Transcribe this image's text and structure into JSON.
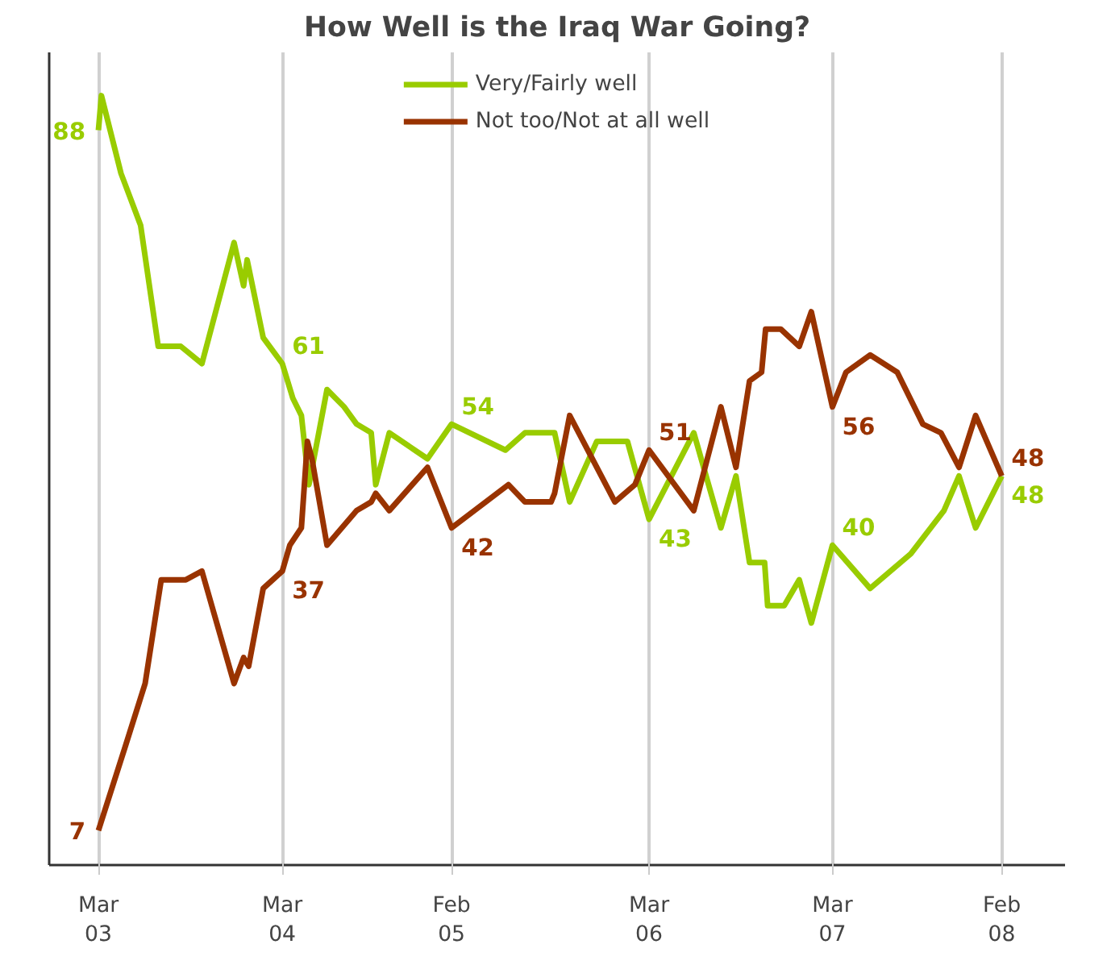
{
  "chart_data": {
    "type": "line",
    "title": "How Well is the Iraq War Going?",
    "xlim": [
      "2002-12-07",
      "2008-06-20"
    ],
    "ylim": [
      3,
      97
    ],
    "tick_labels": "x",
    "grid": "x",
    "legend": "top",
    "marker": "none",
    "line_style": "solid",
    "xticks": [
      {
        "value": "2003-03-15",
        "label": "Mar\n03"
      },
      {
        "value": "2004-03-15",
        "label": "Mar\n04"
      },
      {
        "value": "2005-02-15",
        "label": "Feb\n05"
      },
      {
        "value": "2006-03-15",
        "label": "Mar\n06"
      },
      {
        "value": "2007-03-15",
        "label": "Mar\n07"
      },
      {
        "value": "2008-02-15",
        "label": "Feb\n08"
      }
    ],
    "series": [
      {
        "name": "Very/Fairly well",
        "color": "#99cc00",
        "x": [
          "2003-03-15",
          "2003-03-21",
          "2003-04-29",
          "2003-06-07",
          "2003-07-12",
          "2003-08-26",
          "2003-10-07",
          "2003-12-10",
          "2003-12-29",
          "2004-01-05",
          "2004-02-06",
          "2004-03-15",
          "2004-04-05",
          "2004-04-22",
          "2004-05-07",
          "2004-06-12",
          "2004-07-16",
          "2004-08-10",
          "2004-09-08",
          "2004-09-17",
          "2004-10-14",
          "2004-12-29",
          "2005-02-15",
          "2005-06-02",
          "2005-07-11",
          "2005-09-01",
          "2005-09-08",
          "2005-10-08",
          "2005-12-01",
          "2006-01-31",
          "2006-03-15",
          "2006-06-12",
          "2006-08-05",
          "2006-09-04",
          "2006-10-01",
          "2006-10-31",
          "2006-11-06",
          "2006-12-09",
          "2007-01-08",
          "2007-02-01",
          "2007-03-15",
          "2007-05-29",
          "2007-08-18",
          "2007-10-23",
          "2007-11-22",
          "2007-12-25",
          "2008-02-15"
        ],
        "values": [
          88,
          92,
          83,
          77,
          63,
          63,
          61,
          75,
          70,
          73,
          64,
          61,
          57,
          55,
          47,
          58,
          56,
          54,
          53,
          47,
          53,
          50,
          54,
          51,
          53,
          53,
          53,
          45,
          52,
          52,
          43,
          53,
          42,
          48,
          38,
          38,
          33,
          33,
          36,
          31,
          40,
          35,
          39,
          44,
          48,
          42,
          48
        ],
        "value_labels": [
          "88",
          null,
          null,
          null,
          null,
          null,
          null,
          null,
          null,
          null,
          null,
          "61",
          null,
          null,
          null,
          null,
          null,
          null,
          null,
          null,
          null,
          null,
          "54",
          null,
          null,
          null,
          null,
          null,
          null,
          null,
          "43",
          null,
          null,
          null,
          null,
          null,
          null,
          null,
          null,
          null,
          "40",
          null,
          null,
          null,
          null,
          null,
          "48"
        ]
      },
      {
        "name": "Not too/Not at all well",
        "color": "#993300",
        "x": [
          "2003-03-15",
          "2003-05-09",
          "2003-06-16",
          "2003-07-18",
          "2003-09-05",
          "2003-10-07",
          "2003-12-10",
          "2003-12-29",
          "2004-01-08",
          "2004-02-06",
          "2004-03-15",
          "2004-03-30",
          "2004-04-22",
          "2004-05-04",
          "2004-05-13",
          "2004-06-12",
          "2004-08-10",
          "2004-09-08",
          "2004-09-17",
          "2004-10-14",
          "2004-12-29",
          "2005-02-15",
          "2005-06-08",
          "2005-07-11",
          "2005-09-01",
          "2005-09-08",
          "2005-10-08",
          "2006-01-06",
          "2006-02-15",
          "2006-03-15",
          "2006-06-12",
          "2006-08-05",
          "2006-09-04",
          "2006-10-01",
          "2006-10-25",
          "2006-11-02",
          "2006-12-02",
          "2007-01-08",
          "2007-02-01",
          "2007-03-15",
          "2007-04-11",
          "2007-05-29",
          "2007-07-22",
          "2007-09-11",
          "2007-10-17",
          "2007-11-22",
          "2007-12-25",
          "2008-02-15"
        ],
        "values": [
          7,
          17,
          24,
          36,
          36,
          37,
          24,
          27,
          26,
          35,
          37,
          40,
          42,
          52,
          50,
          40,
          44,
          45,
          46,
          44,
          49,
          42,
          47,
          45,
          45,
          46,
          55,
          45,
          47,
          51,
          44,
          56,
          49,
          59,
          60,
          65,
          65,
          63,
          67,
          56,
          60,
          62,
          60,
          54,
          53,
          49,
          55,
          48
        ],
        "value_labels": [
          "7",
          null,
          null,
          null,
          null,
          null,
          null,
          null,
          null,
          null,
          "37",
          null,
          null,
          null,
          null,
          null,
          null,
          null,
          null,
          null,
          null,
          "42",
          null,
          null,
          null,
          null,
          null,
          null,
          null,
          "51",
          null,
          null,
          null,
          null,
          null,
          null,
          null,
          null,
          null,
          "56",
          null,
          null,
          null,
          null,
          null,
          null,
          null,
          "48"
        ]
      }
    ]
  }
}
